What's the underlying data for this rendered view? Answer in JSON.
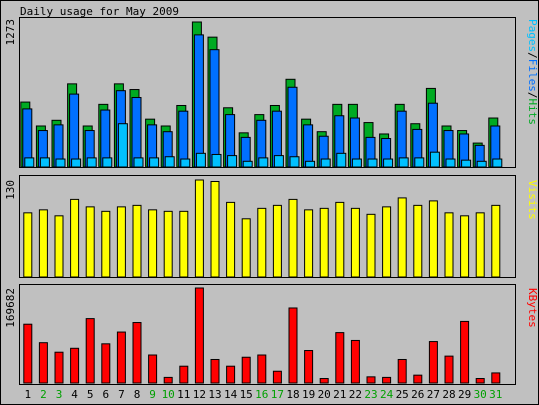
{
  "title": "Daily usage for May 2009",
  "colors": {
    "background": "#c0c0c0",
    "hits": "#00aa22",
    "files": "#0070ff",
    "pages": "#00c0ff",
    "visits": "#ffff00",
    "kbytes": "#ff0000",
    "weekend_label": "#00a000",
    "weekday_label": "#000000"
  },
  "legend_top": [
    "Pages",
    "Files",
    "Hits"
  ],
  "legend_mid": "Visits",
  "legend_bot": "KBytes",
  "chart_data": [
    {
      "type": "bar",
      "name": "pages-files-hits",
      "ymax": 1273,
      "ymax_label": "1273",
      "categories": [
        "1",
        "2",
        "3",
        "4",
        "5",
        "6",
        "7",
        "8",
        "9",
        "10",
        "11",
        "12",
        "13",
        "14",
        "15",
        "16",
        "17",
        "18",
        "19",
        "20",
        "21",
        "22",
        "23",
        "24",
        "25",
        "26",
        "27",
        "28",
        "29",
        "30",
        "31"
      ],
      "weekend_days": [
        "2",
        "3",
        "9",
        "10",
        "16",
        "17",
        "23",
        "24",
        "30",
        "31"
      ],
      "series": [
        {
          "name": "Hits",
          "values": [
            570,
            360,
            410,
            730,
            360,
            550,
            730,
            680,
            420,
            360,
            540,
            1273,
            1140,
            520,
            300,
            460,
            540,
            770,
            420,
            310,
            550,
            550,
            390,
            290,
            550,
            380,
            690,
            360,
            320,
            210,
            430
          ]
        },
        {
          "name": "Files",
          "values": [
            510,
            320,
            370,
            640,
            320,
            500,
            670,
            610,
            370,
            310,
            490,
            1160,
            1030,
            460,
            260,
            410,
            490,
            700,
            370,
            270,
            450,
            430,
            260,
            250,
            490,
            330,
            560,
            320,
            290,
            190,
            360
          ]
        },
        {
          "name": "Pages",
          "values": [
            80,
            80,
            70,
            70,
            80,
            80,
            380,
            80,
            80,
            90,
            70,
            120,
            110,
            100,
            50,
            80,
            100,
            90,
            50,
            70,
            120,
            70,
            70,
            70,
            80,
            80,
            130,
            70,
            60,
            50,
            70
          ]
        }
      ]
    },
    {
      "type": "bar",
      "name": "visits",
      "ymax": 130,
      "ymax_label": "130",
      "series": [
        {
          "name": "Visits",
          "values": [
            86,
            90,
            82,
            104,
            94,
            88,
            94,
            96,
            90,
            88,
            88,
            130,
            128,
            100,
            78,
            92,
            96,
            104,
            90,
            92,
            100,
            92,
            84,
            94,
            106,
            96,
            102,
            86,
            82,
            86,
            96
          ]
        }
      ]
    },
    {
      "type": "bar",
      "name": "kbytes",
      "ymax": 169682,
      "ymax_label": "169682",
      "series": [
        {
          "name": "KBytes",
          "values": [
            105000,
            72000,
            55000,
            62000,
            115000,
            70000,
            91000,
            108000,
            50000,
            10000,
            30000,
            169682,
            42000,
            30000,
            46000,
            50000,
            21000,
            134000,
            58000,
            8000,
            90000,
            76000,
            11000,
            10000,
            42000,
            14000,
            74000,
            48000,
            110000,
            8000,
            18000
          ]
        }
      ]
    }
  ]
}
